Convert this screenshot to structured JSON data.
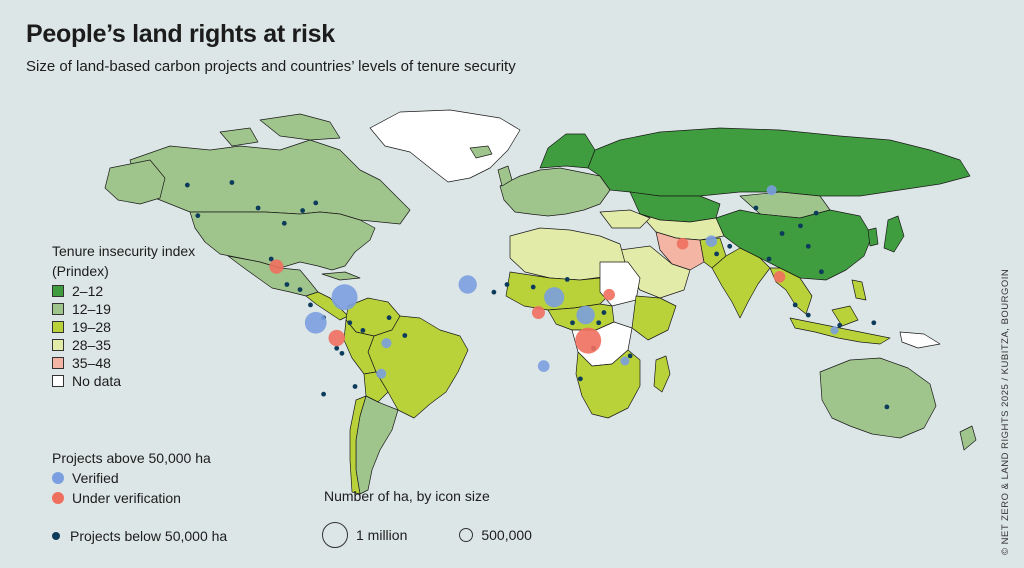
{
  "title": "People’s land rights at risk",
  "subtitle": "Size of land-based carbon projects and countries’ levels of tenure security",
  "legend": {
    "tenure_title_line1": "Tenure insecurity index",
    "tenure_title_line2": "(Prindex)",
    "classes": [
      {
        "label": "2–12",
        "color": "#3f9c3f"
      },
      {
        "label": "12–19",
        "color": "#9fc58c"
      },
      {
        "label": "19–28",
        "color": "#b9d23a"
      },
      {
        "label": "28–35",
        "color": "#e3eba8"
      },
      {
        "label": "35–48",
        "color": "#f4b5a4"
      },
      {
        "label": "No data",
        "color": "#ffffff"
      }
    ],
    "projects_title": "Projects above 50,000 ha",
    "verified_label": "Verified",
    "verified_color": "#7b9ee0",
    "under_label": "Under verification",
    "under_color": "#ef6f5f",
    "small_label": "Projects below 50,000 ha",
    "small_color": "#0d3b5c",
    "size_title": "Number of ha, by icon size",
    "size_1m": "1 million",
    "size_500k": "500,000"
  },
  "credit": "© NET ZERO & LAND RIGHTS 2025 / KUBITZA, BOURGOIN",
  "map_data": {
    "countries": [
      {
        "name": "Canada",
        "class": 1
      },
      {
        "name": "United States",
        "class": 1
      },
      {
        "name": "Mexico",
        "class": 1
      },
      {
        "name": "Greenland",
        "class": 5
      },
      {
        "name": "Brazil",
        "class": 2
      },
      {
        "name": "Argentina",
        "class": 2
      },
      {
        "name": "Russia",
        "class": 0
      },
      {
        "name": "China",
        "class": 0
      },
      {
        "name": "India",
        "class": 2
      },
      {
        "name": "Australia",
        "class": 1
      },
      {
        "name": "Iran",
        "class": 4
      },
      {
        "name": "Kazakhstan",
        "class": 0
      },
      {
        "name": "Mongolia",
        "class": 1
      },
      {
        "name": "Indonesia",
        "class": 2
      },
      {
        "name": "Madagascar",
        "class": 2
      },
      {
        "name": "Sudan",
        "class": 5
      },
      {
        "name": "DR Congo",
        "class": 5
      },
      {
        "name": "Saudi Arabia",
        "class": 3
      },
      {
        "name": "Scandinavia",
        "class": 0
      },
      {
        "name": "Europe",
        "class": 1
      }
    ],
    "large_projects": [
      {
        "status": "verified",
        "lon": -62,
        "lat": 5,
        "ha": 1000000
      },
      {
        "status": "verified",
        "lon": -73,
        "lat": -5,
        "ha": 700000
      },
      {
        "status": "under",
        "lon": -65,
        "lat": -11,
        "ha": 400000
      },
      {
        "status": "under",
        "lon": -88,
        "lat": 17,
        "ha": 300000
      },
      {
        "status": "verified",
        "lon": -15,
        "lat": 10,
        "ha": 500000
      },
      {
        "status": "verified",
        "lon": 18,
        "lat": 5,
        "ha": 600000
      },
      {
        "status": "verified",
        "lon": 30,
        "lat": -2,
        "ha": 500000
      },
      {
        "status": "under",
        "lon": 31,
        "lat": -12,
        "ha": 1000000
      },
      {
        "status": "under",
        "lon": 12,
        "lat": -1,
        "ha": 250000
      },
      {
        "status": "verified",
        "lon": 14,
        "lat": -22,
        "ha": 200000
      },
      {
        "status": "under",
        "lon": 39,
        "lat": 6,
        "ha": 200000
      },
      {
        "status": "under",
        "lon": 67,
        "lat": 26,
        "ha": 200000
      },
      {
        "status": "verified",
        "lon": 78,
        "lat": 27,
        "ha": 200000
      },
      {
        "status": "under",
        "lon": 104,
        "lat": 13,
        "ha": 200000
      },
      {
        "status": "verified",
        "lon": 101,
        "lat": 47,
        "ha": 150000
      },
      {
        "status": "verified",
        "lon": -46,
        "lat": -13,
        "ha": 150000
      },
      {
        "status": "verified",
        "lon": -48,
        "lat": -25,
        "ha": 150000
      },
      {
        "status": "verified",
        "lon": 45,
        "lat": -20,
        "ha": 120000
      },
      {
        "status": "verified",
        "lon": 125,
        "lat": -8,
        "ha": 100000
      }
    ],
    "small_projects": [
      {
        "lon": -122,
        "lat": 49
      },
      {
        "lon": -95,
        "lat": 40
      },
      {
        "lon": -85,
        "lat": 34
      },
      {
        "lon": -78,
        "lat": 39
      },
      {
        "lon": -73,
        "lat": 42
      },
      {
        "lon": -118,
        "lat": 37
      },
      {
        "lon": -105,
        "lat": 50
      },
      {
        "lon": -90,
        "lat": 20
      },
      {
        "lon": -84,
        "lat": 10
      },
      {
        "lon": -79,
        "lat": 8
      },
      {
        "lon": -75,
        "lat": 2
      },
      {
        "lon": -70,
        "lat": -3
      },
      {
        "lon": -60,
        "lat": -5
      },
      {
        "lon": -55,
        "lat": -8
      },
      {
        "lon": -63,
        "lat": -17
      },
      {
        "lon": -58,
        "lat": -30
      },
      {
        "lon": -70,
        "lat": -33
      },
      {
        "lon": -65,
        "lat": -15
      },
      {
        "lon": -45,
        "lat": -3
      },
      {
        "lon": -39,
        "lat": -10
      },
      {
        "lon": -5,
        "lat": 7
      },
      {
        "lon": 0,
        "lat": 10
      },
      {
        "lon": 10,
        "lat": 9
      },
      {
        "lon": 23,
        "lat": 12
      },
      {
        "lon": 25,
        "lat": -5
      },
      {
        "lon": 35,
        "lat": -5
      },
      {
        "lon": 37,
        "lat": -1
      },
      {
        "lon": 33,
        "lat": -15
      },
      {
        "lon": 28,
        "lat": -27
      },
      {
        "lon": 47,
        "lat": -18
      },
      {
        "lon": 80,
        "lat": 22
      },
      {
        "lon": 85,
        "lat": 25
      },
      {
        "lon": 105,
        "lat": 30
      },
      {
        "lon": 112,
        "lat": 33
      },
      {
        "lon": 115,
        "lat": 25
      },
      {
        "lon": 100,
        "lat": 20
      },
      {
        "lon": 120,
        "lat": 15
      },
      {
        "lon": 110,
        "lat": 2
      },
      {
        "lon": 115,
        "lat": -2
      },
      {
        "lon": 145,
        "lat": -38
      },
      {
        "lon": 118,
        "lat": 38
      },
      {
        "lon": 95,
        "lat": 40
      },
      {
        "lon": 127,
        "lat": -6
      },
      {
        "lon": 140,
        "lat": -5
      }
    ]
  }
}
